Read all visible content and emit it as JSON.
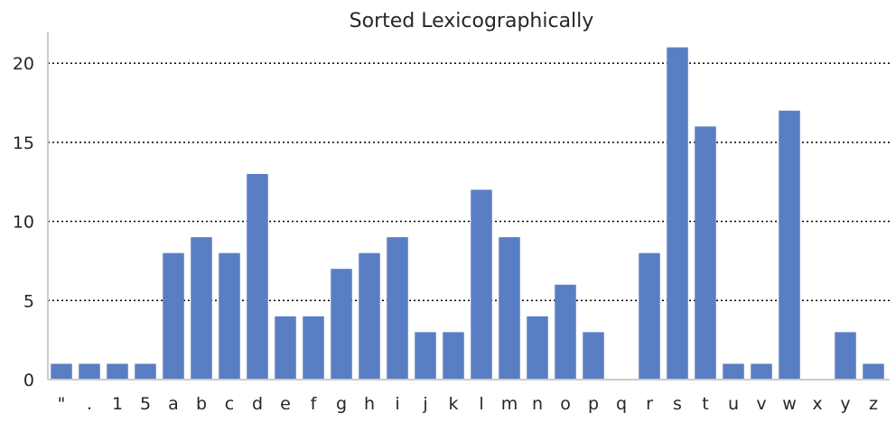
{
  "chart_data": {
    "type": "bar",
    "title": "Sorted Lexicographically",
    "xlabel": "",
    "ylabel": "",
    "categories": [
      "\"",
      ".",
      "1",
      "5",
      "a",
      "b",
      "c",
      "d",
      "e",
      "f",
      "g",
      "h",
      "i",
      "j",
      "k",
      "l",
      "m",
      "n",
      "o",
      "p",
      "q",
      "r",
      "s",
      "t",
      "u",
      "v",
      "w",
      "x",
      "y",
      "z"
    ],
    "values": [
      1,
      1,
      1,
      1,
      8,
      9,
      8,
      13,
      4,
      4,
      7,
      8,
      9,
      3,
      3,
      12,
      9,
      4,
      6,
      3,
      0,
      8,
      21,
      16,
      1,
      1,
      17,
      0,
      3,
      1
    ],
    "ylim": [
      0,
      22
    ],
    "yticks": [
      0,
      5,
      10,
      15,
      20
    ],
    "grid": "horizontal dotted",
    "bar_color": "#5a7ec3"
  }
}
